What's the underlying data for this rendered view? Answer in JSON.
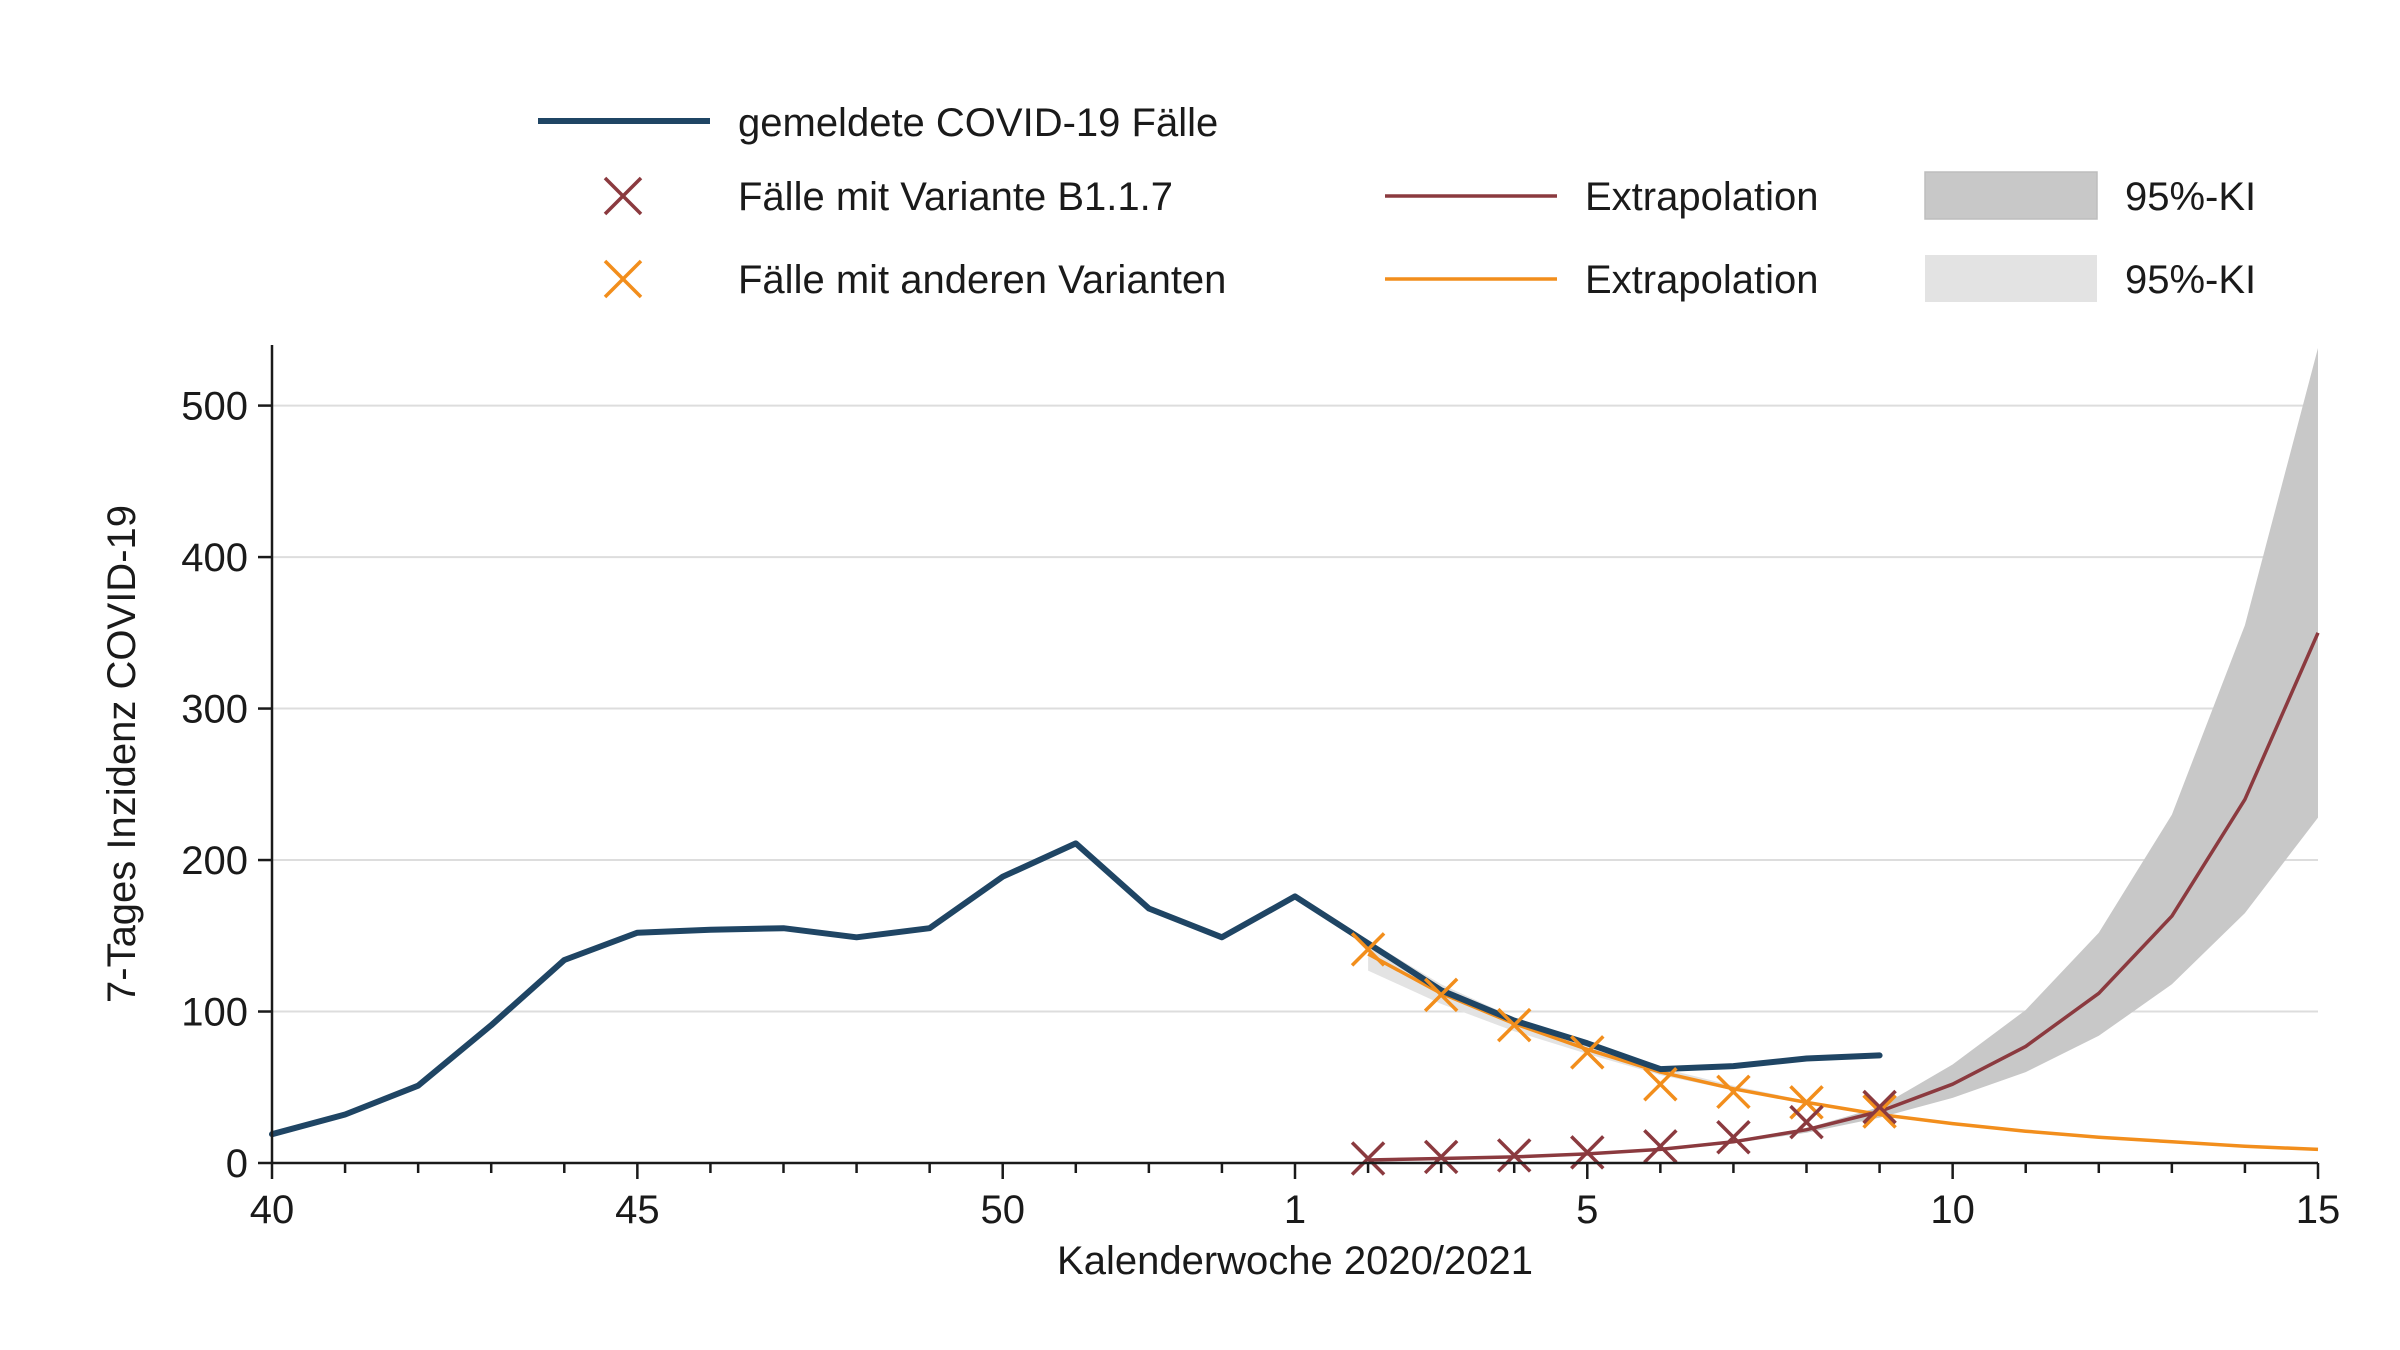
{
  "chart_data": {
    "type": "line",
    "title": "",
    "xlabel": "Kalenderwoche 2020/2021",
    "ylabel": "7-Tages Inzidenz COVID-19",
    "ylim": [
      0,
      540
    ],
    "xlim": [
      0,
      28
    ],
    "grid": true,
    "x_major_ticks": [
      {
        "pos": 0,
        "label": "40"
      },
      {
        "pos": 5,
        "label": "45"
      },
      {
        "pos": 10,
        "label": "50"
      },
      {
        "pos": 14,
        "label": "1"
      },
      {
        "pos": 18,
        "label": "5"
      },
      {
        "pos": 23,
        "label": "10"
      },
      {
        "pos": 28,
        "label": "15"
      }
    ],
    "y_ticks": [
      0,
      100,
      200,
      300,
      400,
      500
    ],
    "legend": {
      "reported_label": "gemeldete COVID-19 Fälle",
      "b117_label": "Fälle mit Variante B1.1.7",
      "other_label": "Fälle mit anderen Varianten",
      "b117_extrap_label": "Extrapolation",
      "other_extrap_label": "Extrapolation",
      "b117_ci_label": "95%-KI",
      "other_ci_label": "95%-KI"
    },
    "colors": {
      "reported": "#1f4564",
      "b117": "#8b3a3f",
      "other": "#f28e1c",
      "ci_b117": "#c8c8c8",
      "ci_other": "#e3e3e3",
      "grid": "#dddddd",
      "axis": "#1a1a1a"
    },
    "series": [
      {
        "name": "gemeldete COVID-19 Fälle",
        "x": [
          0,
          1,
          2,
          3,
          4,
          5,
          6,
          7,
          8,
          9,
          10,
          11,
          12,
          13,
          14,
          15,
          16,
          17,
          18,
          19,
          20,
          21,
          22
        ],
        "values": [
          19,
          32,
          51,
          91,
          134,
          152,
          154,
          155,
          149,
          155,
          189,
          211,
          168,
          149,
          176,
          145,
          114,
          94,
          79,
          62,
          64,
          69,
          71
        ]
      },
      {
        "name": "Fälle mit Variante B1.1.7",
        "x": [
          15,
          16,
          17,
          18,
          19,
          20,
          21,
          22
        ],
        "values": [
          3,
          4,
          5,
          7,
          11,
          17,
          27,
          37
        ]
      },
      {
        "name": "Fälle mit anderen Varianten",
        "x": [
          15,
          16,
          17,
          18,
          19,
          20,
          21,
          22
        ],
        "values": [
          141,
          111,
          91,
          73,
          52,
          47,
          40,
          34
        ]
      },
      {
        "name": "Extrapolation B1.1.7",
        "x": [
          15,
          16,
          17,
          18,
          19,
          20,
          21,
          22,
          23,
          24,
          25,
          26,
          27,
          28
        ],
        "values": [
          2,
          3,
          4,
          6,
          9,
          14,
          22,
          34,
          52,
          77,
          112,
          163,
          240,
          350
        ],
        "ci_lower": [
          2,
          3,
          4,
          6,
          9,
          13,
          20,
          30,
          43,
          60,
          84,
          118,
          165,
          228
        ],
        "ci_upper": [
          2,
          3,
          4,
          6,
          10,
          15,
          23,
          37,
          65,
          101,
          152,
          230,
          355,
          538
        ]
      },
      {
        "name": "Extrapolation andere Varianten",
        "x": [
          15,
          16,
          17,
          18,
          19,
          20,
          21,
          22,
          23,
          24,
          25,
          26,
          27,
          28
        ],
        "values": [
          138,
          112,
          92,
          75,
          60,
          49,
          40,
          32,
          26,
          21,
          17,
          14,
          11,
          9
        ],
        "ci_lower": [
          127,
          105,
          87,
          72,
          58,
          48,
          39,
          31,
          25,
          20,
          16,
          13,
          11,
          9
        ],
        "ci_upper": [
          147,
          118,
          96,
          78,
          63,
          51,
          41,
          33,
          27,
          22,
          18,
          14,
          11,
          9
        ]
      }
    ]
  }
}
